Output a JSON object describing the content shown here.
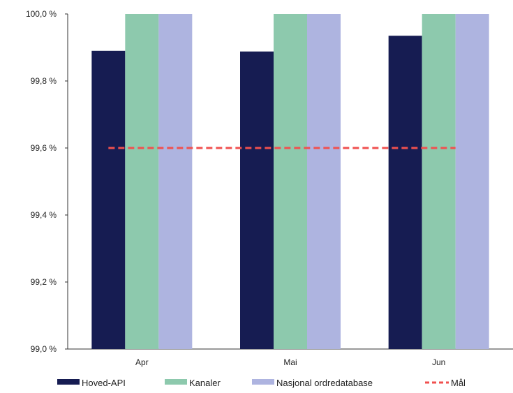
{
  "chart_data": {
    "type": "bar",
    "categories": [
      "Apr",
      "Mai",
      "Jun"
    ],
    "series": [
      {
        "name": "Hoved-API",
        "values": [
          99.89,
          99.888,
          99.935
        ],
        "color": "#161c52"
      },
      {
        "name": "Kanaler",
        "values": [
          100.0,
          100.0,
          100.0
        ],
        "color": "#8dc9ad"
      },
      {
        "name": "Nasjonal ordredatabase",
        "values": [
          100.0,
          100.0,
          100.0
        ],
        "color": "#aeb4e0"
      }
    ],
    "target": {
      "name": "Mål",
      "value": 99.6,
      "color": "#f0504f",
      "style": "dashed"
    },
    "ylim": [
      99.0,
      100.0
    ],
    "yticks": [
      99.0,
      99.2,
      99.4,
      99.6,
      99.8,
      100.0
    ],
    "ytick_labels": [
      "99,0 %",
      "99,2 %",
      "99,4 %",
      "99,6 %",
      "99,8 %",
      "100,0 %"
    ],
    "grid": false,
    "legend": {
      "position": "bottom",
      "labels": [
        "Hoved-API",
        "Kanaler",
        "Nasjonal ordredatabase",
        "Mål"
      ]
    },
    "title": "",
    "xlabel": "",
    "ylabel": ""
  }
}
